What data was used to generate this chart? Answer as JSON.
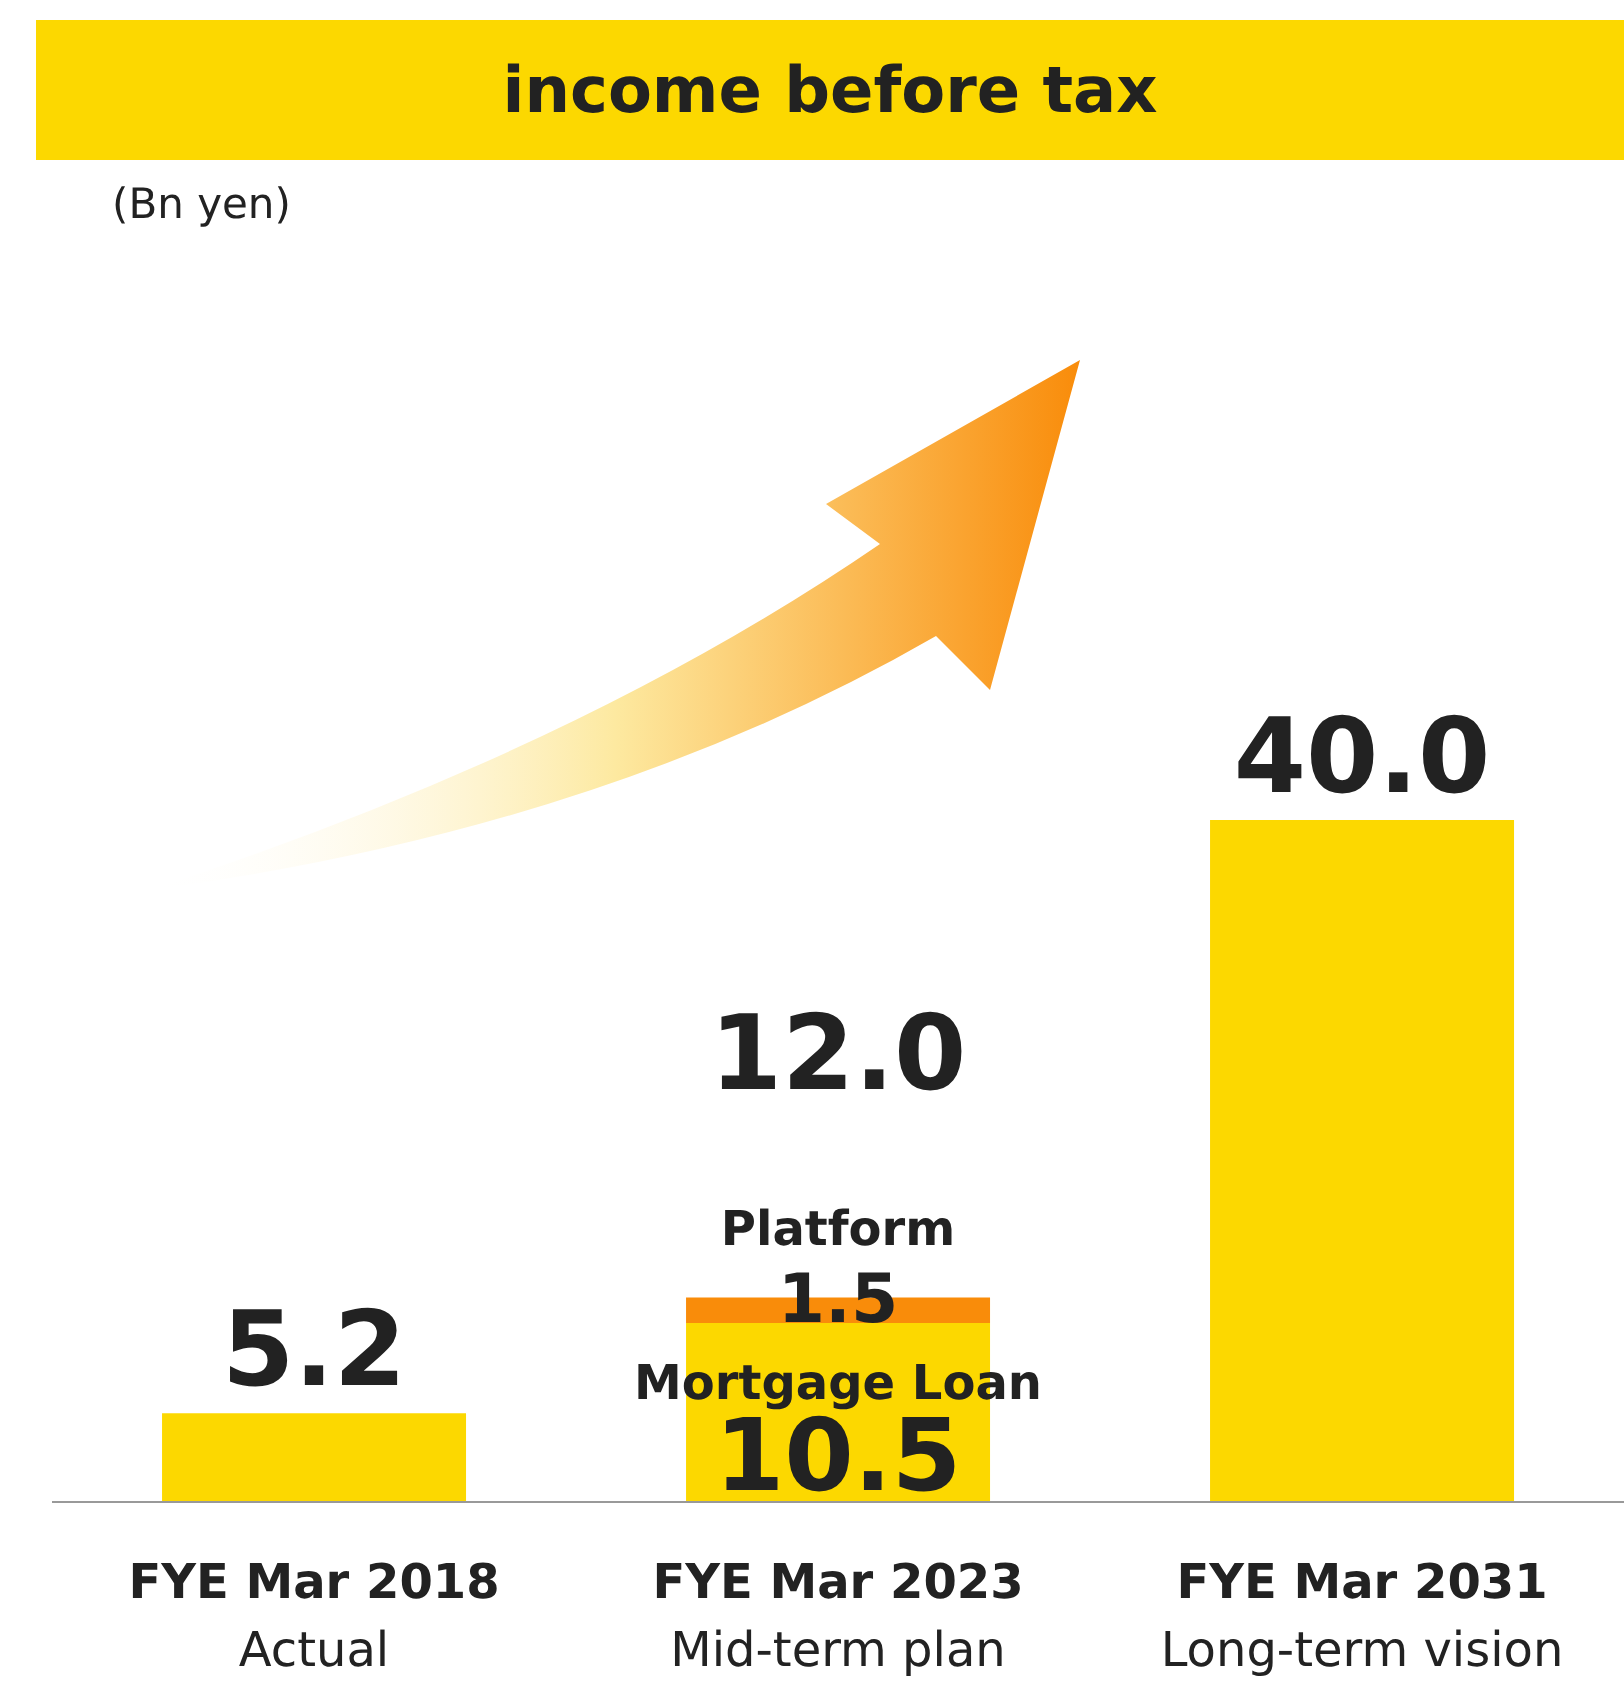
{
  "chart_data": {
    "type": "bar",
    "title": "income before tax",
    "annotations": [
      "(Bn yen)"
    ],
    "stacked": true,
    "categories": [
      "FYE Mar 2018\nActual",
      "FYE Mar 2023\nMid-term plan",
      "FYE Mar 2031\nLong-term vision"
    ],
    "series": [
      {
        "name": "Mortgage Loan",
        "color": "#fcd800",
        "values": [
          5.2,
          10.5,
          40.0
        ],
        "value_labels": [
          null,
          "10.5",
          null
        ]
      },
      {
        "name": "Platform",
        "color": "#f98c0a",
        "values": [
          null,
          1.5,
          null
        ],
        "value_labels": [
          null,
          "1.5",
          null
        ]
      }
    ],
    "totals": [
      "5.2",
      "12.0",
      "40.0"
    ]
  }
}
